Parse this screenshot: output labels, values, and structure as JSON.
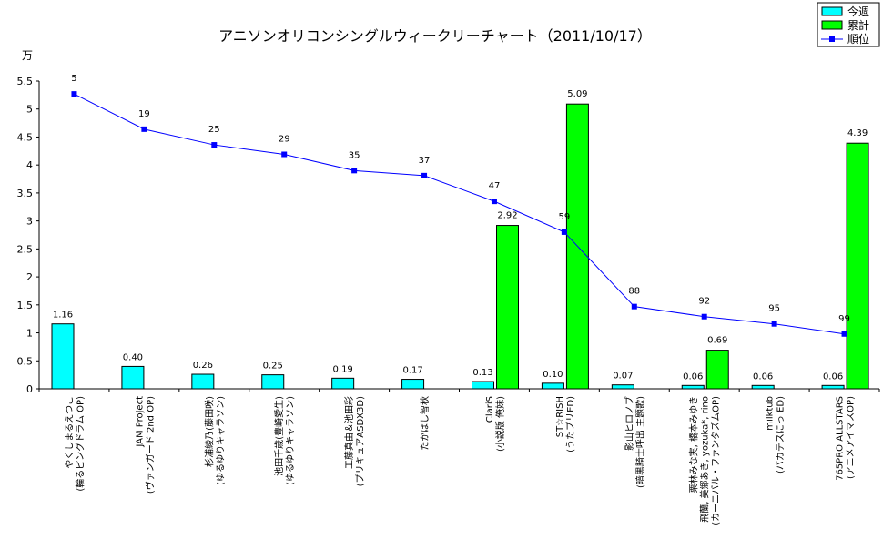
{
  "chart_data": {
    "type": "bar",
    "title": "アニソンオリコンシングルウィークリーチャート（2011/10/17）",
    "ylabel": "万",
    "ylim": [
      0,
      5.5
    ],
    "yticks": [
      "0",
      "0.5",
      "1",
      "1.5",
      "2",
      "2.5",
      "3",
      "3.5",
      "4",
      "4.5",
      "5",
      "5.5"
    ],
    "grid": false,
    "legend_position": "top-right",
    "colors": {
      "weekly": "#00ffff",
      "cumulative": "#00ff00",
      "rank": "#0000ff"
    },
    "categories": [
      [
        "やくしまるえつこ",
        "(輪るピングドラム OP)"
      ],
      [
        "JAM Project",
        "(ヴァンガード 2nd OP)"
      ],
      [
        "杉浦綾乃(藤田咲)",
        "(ゆるゆりキャラソン)"
      ],
      [
        "池田千歳(豊崎愛生)",
        "(ゆるゆりキャラソン)"
      ],
      [
        "工藤真由＆池田彩",
        "(プリキュアASDX3D)"
      ],
      [
        "たかはし智秋"
      ],
      [
        "ClariS",
        "(小説版 俺妹)"
      ],
      [
        "ST☆RISH",
        "(うたプリED)"
      ],
      [
        "影山ヒロノブ",
        "(暗黒騎士呼出 主題歌)"
      ],
      [
        "栗林みな実, 橋本みゆき",
        "飛蘭, 美郷あき, yozuka*, rino",
        "(カーニバル・ファンタズムOP)"
      ],
      [
        "milktub",
        "(バカテスにっ ED)"
      ],
      [
        "765PRO ALLSTARS",
        "(アニメアイマスOP)"
      ]
    ],
    "series": [
      {
        "name": "今週",
        "type": "bar",
        "values": [
          1.16,
          0.4,
          0.26,
          0.25,
          0.19,
          0.17,
          0.13,
          0.1,
          0.07,
          0.06,
          0.06,
          0.06
        ],
        "labels": [
          "1.16",
          "0.40",
          "0.26",
          "0.25",
          "0.19",
          "0.17",
          "0.13",
          "0.10",
          "0.07",
          "0.06",
          "0.06",
          "0.06"
        ]
      },
      {
        "name": "累計",
        "type": "bar",
        "values": [
          null,
          null,
          null,
          null,
          null,
          null,
          2.92,
          5.09,
          null,
          0.69,
          null,
          4.39
        ],
        "labels": [
          "",
          "",
          "",
          "",
          "",
          "",
          "2.92",
          "5.09",
          "",
          "0.69",
          "",
          "4.39"
        ]
      },
      {
        "name": "順位",
        "type": "line",
        "values": [
          5,
          19,
          25,
          29,
          35,
          37,
          47,
          59,
          88,
          92,
          95,
          99
        ],
        "plot_values": [
          5.27,
          4.64,
          4.36,
          4.19,
          3.9,
          3.81,
          3.35,
          2.8,
          1.47,
          1.29,
          1.16,
          0.98
        ],
        "labels": [
          "5",
          "19",
          "25",
          "29",
          "35",
          "37",
          "47",
          "59",
          "88",
          "92",
          "95",
          "99"
        ]
      }
    ]
  }
}
